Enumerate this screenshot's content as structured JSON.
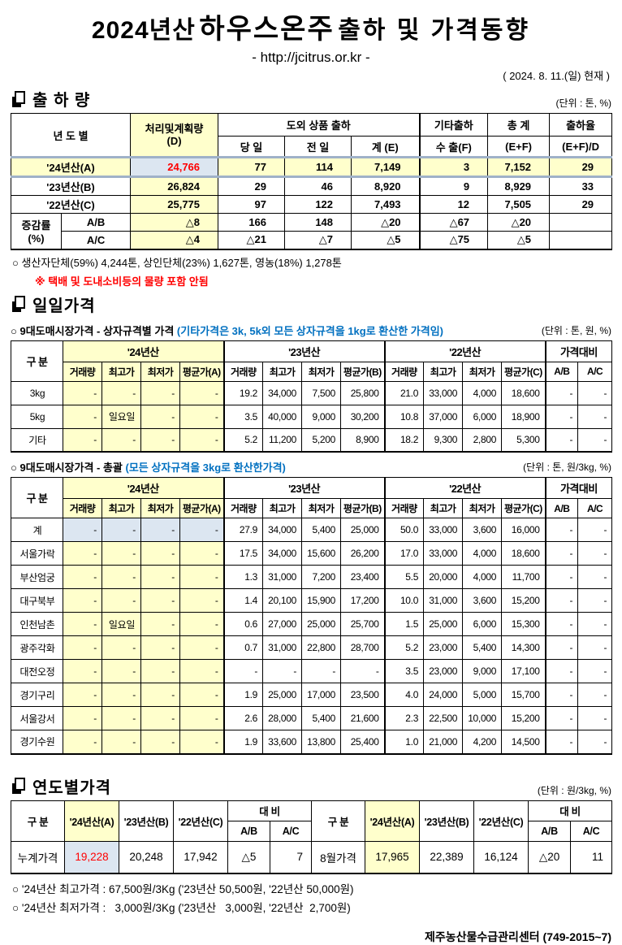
{
  "page": {
    "title_year": "2024년산",
    "title_product": "하우스온주",
    "title_suffix": "출하 및 가격동향",
    "subtitle": "- http://jcitrus.or.kr -",
    "as_of": "( 2024. 8. 11.(일) 현재 )",
    "footer": "제주농산물수급관리센터 (749-2015~7)"
  },
  "colors": {
    "highlight_yellow": "#FFFFCC",
    "highlight_blue": "#DCE6F1",
    "alert_red": "#FF0000",
    "note_blue": "#0070C0",
    "band_border": "#9FB1C8"
  },
  "shipment": {
    "section_title": "출 하 량",
    "unit": "(단위 : 톤, %)",
    "col_headers": {
      "year": "년  도  별",
      "plan": "처리및계획량",
      "plan_d": "(D)",
      "offshore": "도외 상품 출하",
      "today": "당 일",
      "prev": "전 일",
      "sum_e": "계 (E)",
      "other": "기타출하",
      "export": "수 출(F)",
      "total": "총   계",
      "total_sub": "(E+F)",
      "rate": "출하율",
      "rate_sub": "(E+F)/D"
    },
    "rows": [
      {
        "label": "'24년산(A)",
        "d": "24,766",
        "today": "77",
        "prev": "114",
        "e": "7,149",
        "f": "3",
        "ef": "7,152",
        "rate": "29"
      },
      {
        "label": "'23년산(B)",
        "d": "26,824",
        "today": "29",
        "prev": "46",
        "e": "8,920",
        "f": "9",
        "ef": "8,929",
        "rate": "33"
      },
      {
        "label": "'22년산(C)",
        "d": "25,775",
        "today": "97",
        "prev": "122",
        "e": "7,493",
        "f": "12",
        "ef": "7,505",
        "rate": "29"
      }
    ],
    "change": {
      "label": "증감률",
      "unit": "(%)",
      "rows": [
        {
          "sub": "A/B",
          "d": "△8",
          "today": "166",
          "prev": "148",
          "e": "△20",
          "f": "△67",
          "ef": "△20",
          "rate": ""
        },
        {
          "sub": "A/C",
          "d": "△4",
          "today": "△21",
          "prev": "△7",
          "e": "△5",
          "f": "△75",
          "ef": "△5",
          "rate": ""
        }
      ]
    },
    "note1": "○ 생산자단체(59%) 4,244톤, 상인단체(23%) 1,627톤, 영농(18%) 1,278톤",
    "note2": "※ 택배 및 도내소비등의 물량 포함 안됨"
  },
  "daily": {
    "section_title": "일일가격",
    "corner": "구  분",
    "groups": [
      "'24년산",
      "'23년산",
      "'22년산",
      "가격대비"
    ],
    "subheads": [
      "거래량",
      "최고가",
      "최저가",
      "평균가(A)",
      "거래량",
      "최고가",
      "최저가",
      "평균가(B)",
      "거래량",
      "최고가",
      "최저가",
      "평균가(C)",
      "A/B",
      "A/C"
    ],
    "by_box": {
      "caption": "○ 9대도매시장가격 - 상자규격별 가격 ",
      "caption_note": "(기타가격은 3k, 5k외 모든 상자규격을 1kg로 환산한 가격임)",
      "unit": "(단위 : 톤,  원, %)",
      "rows": [
        [
          "3kg",
          "-",
          "-",
          "-",
          "-",
          "19.2",
          "34,000",
          "7,500",
          "25,800",
          "21.0",
          "33,000",
          "4,000",
          "18,600",
          "-",
          "-"
        ],
        [
          "5kg",
          "-",
          "일요일",
          "-",
          "-",
          "3.5",
          "40,000",
          "9,000",
          "30,200",
          "10.8",
          "37,000",
          "6,000",
          "18,900",
          "-",
          "-"
        ],
        [
          "기타",
          "-",
          "-",
          "-",
          "-",
          "5.2",
          "11,200",
          "5,200",
          "8,900",
          "18.2",
          "9,300",
          "2,800",
          "5,300",
          "-",
          "-"
        ]
      ]
    },
    "overall": {
      "caption": "○ 9대도매시장가격 - 총괄 ",
      "caption_note": "(모든 상자규격을 3kg로 환산한가격)",
      "unit": "(단위 : 톤, 원/3kg, %)",
      "rows": [
        [
          "계",
          "-",
          "-",
          "-",
          "-",
          "27.9",
          "34,000",
          "5,400",
          "25,000",
          "50.0",
          "33,000",
          "3,600",
          "16,000",
          "-",
          "-"
        ],
        [
          "서울가락",
          "-",
          "-",
          "-",
          "-",
          "17.5",
          "34,000",
          "15,600",
          "26,200",
          "17.0",
          "33,000",
          "4,000",
          "18,600",
          "-",
          "-"
        ],
        [
          "부산엄궁",
          "-",
          "-",
          "-",
          "-",
          "1.3",
          "31,000",
          "7,200",
          "23,400",
          "5.5",
          "20,000",
          "4,000",
          "11,700",
          "-",
          "-"
        ],
        [
          "대구북부",
          "-",
          "-",
          "-",
          "-",
          "1.4",
          "20,100",
          "15,900",
          "17,200",
          "10.0",
          "31,000",
          "3,600",
          "15,200",
          "-",
          "-"
        ],
        [
          "인천남촌",
          "-",
          "일요일",
          "-",
          "-",
          "0.6",
          "27,000",
          "25,000",
          "25,700",
          "1.5",
          "25,000",
          "6,000",
          "15,300",
          "-",
          "-"
        ],
        [
          "광주각화",
          "-",
          "-",
          "-",
          "-",
          "0.7",
          "31,000",
          "22,800",
          "28,700",
          "5.2",
          "23,000",
          "5,400",
          "14,300",
          "-",
          "-"
        ],
        [
          "대전오정",
          "-",
          "-",
          "-",
          "-",
          "-",
          "-",
          "-",
          "-",
          "3.5",
          "23,000",
          "9,000",
          "17,100",
          "-",
          "-"
        ],
        [
          "경기구리",
          "-",
          "-",
          "-",
          "-",
          "1.9",
          "25,000",
          "17,000",
          "23,500",
          "4.0",
          "24,000",
          "5,000",
          "15,700",
          "-",
          "-"
        ],
        [
          "서울강서",
          "-",
          "-",
          "-",
          "-",
          "2.6",
          "28,000",
          "5,400",
          "21,600",
          "2.3",
          "22,500",
          "10,000",
          "15,200",
          "-",
          "-"
        ],
        [
          "경기수원",
          "-",
          "-",
          "-",
          "-",
          "1.9",
          "33,600",
          "13,800",
          "25,400",
          "1.0",
          "21,000",
          "4,200",
          "14,500",
          "-",
          "-"
        ]
      ]
    }
  },
  "yearly": {
    "section_title": "연도별가격",
    "unit": "(단위 : 원/3kg, %)",
    "headers": {
      "corner": "구      분",
      "y24": "'24년산(A)",
      "y23": "'23년산(B)",
      "y22": "'22년산(C)",
      "vs": "대      비",
      "ab": "A/B",
      "ac": "A/C"
    },
    "left": {
      "label": "누계가격",
      "y24": "19,228",
      "y23": "20,248",
      "y22": "17,942",
      "ab": "△5",
      "ac": "7"
    },
    "right": {
      "label": "8월가격",
      "y24": "17,965",
      "y23": "22,389",
      "y22": "16,124",
      "ab": "△20",
      "ac": "11"
    },
    "note_high": "○ '24년산 최고가격 : 67,500원/3Kg ('23년산 50,500원, '22년산 50,000원)",
    "note_low": "○ '24년산 최저가격 :   3,000원/3Kg ('23년산   3,000원, '22년산  2,700원)"
  }
}
